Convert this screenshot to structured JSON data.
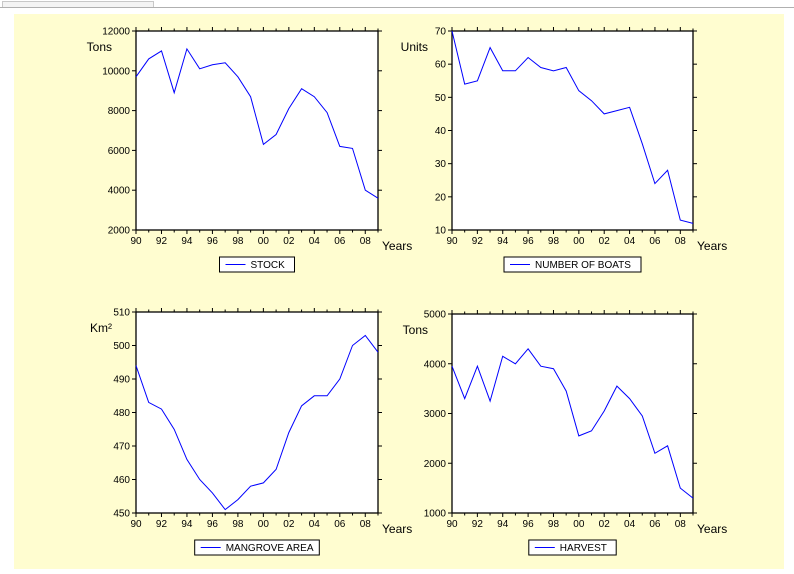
{
  "chart_data": [
    {
      "type": "line",
      "ylabel": "Tons",
      "xlabel": "Years",
      "ylim": [
        2000,
        12000
      ],
      "yticks": [
        "2000",
        "4000",
        "6000",
        "8000",
        "10000",
        "12000"
      ],
      "xticks": [
        "90",
        "92",
        "94",
        "96",
        "98",
        "00",
        "02",
        "04",
        "06",
        "08"
      ],
      "x": [
        "1990",
        "1991",
        "1992",
        "1993",
        "1994",
        "1995",
        "1996",
        "1997",
        "1998",
        "1999",
        "2000",
        "2001",
        "2002",
        "2003",
        "2004",
        "2005",
        "2006",
        "2007",
        "2008",
        "2009"
      ],
      "series": [
        {
          "name": "STOCK",
          "values": [
            9700,
            10600,
            11000,
            8900,
            11100,
            10100,
            10300,
            10400,
            9700,
            8700,
            6300,
            6800,
            8100,
            9100,
            8700,
            7900,
            6200,
            6100,
            4000,
            3600
          ]
        }
      ],
      "legend": "bottom-center",
      "line_color": "#0000ff"
    },
    {
      "type": "line",
      "ylabel": "Units",
      "xlabel": "Years",
      "ylim": [
        10,
        70
      ],
      "yticks": [
        "10",
        "20",
        "30",
        "40",
        "50",
        "60",
        "70"
      ],
      "xticks": [
        "90",
        "92",
        "94",
        "96",
        "98",
        "00",
        "02",
        "04",
        "06",
        "08"
      ],
      "x": [
        "1990",
        "1991",
        "1992",
        "1993",
        "1994",
        "1995",
        "1996",
        "1997",
        "1998",
        "1999",
        "2000",
        "2001",
        "2002",
        "2003",
        "2004",
        "2005",
        "2006",
        "2007",
        "2008",
        "2009"
      ],
      "series": [
        {
          "name": "NUMBER OF BOATS",
          "values": [
            70,
            54,
            55,
            65,
            58,
            58,
            62,
            59,
            58,
            59,
            52,
            49,
            45,
            46,
            47,
            36,
            24,
            28,
            13,
            12
          ]
        }
      ],
      "legend": "bottom-center",
      "line_color": "#0000ff"
    },
    {
      "type": "line",
      "ylabel": "Km²",
      "xlabel": "Years",
      "ylim": [
        450,
        510
      ],
      "yticks": [
        "450",
        "460",
        "470",
        "480",
        "490",
        "500",
        "510"
      ],
      "xticks": [
        "90",
        "92",
        "94",
        "96",
        "98",
        "00",
        "02",
        "04",
        "06",
        "08"
      ],
      "x": [
        "1990",
        "1991",
        "1992",
        "1993",
        "1994",
        "1995",
        "1996",
        "1997",
        "1998",
        "1999",
        "2000",
        "2001",
        "2002",
        "2003",
        "2004",
        "2005",
        "2006",
        "2007",
        "2008",
        "2009"
      ],
      "series": [
        {
          "name": "MANGROVE AREA",
          "values": [
            494,
            483,
            481,
            475,
            466,
            460,
            456,
            451,
            454,
            458,
            459,
            463,
            474,
            482,
            485,
            485,
            490,
            500,
            503,
            498
          ]
        }
      ],
      "legend": "bottom-center",
      "line_color": "#0000ff"
    },
    {
      "type": "line",
      "ylabel": "Tons",
      "xlabel": "Years",
      "ylim": [
        1000,
        5000
      ],
      "yticks": [
        "1000",
        "2000",
        "3000",
        "4000",
        "5000"
      ],
      "xticks": [
        "90",
        "92",
        "94",
        "96",
        "98",
        "00",
        "02",
        "04",
        "06",
        "08"
      ],
      "x": [
        "1990",
        "1991",
        "1992",
        "1993",
        "1994",
        "1995",
        "1996",
        "1997",
        "1998",
        "1999",
        "2000",
        "2001",
        "2002",
        "2003",
        "2004",
        "2005",
        "2006",
        "2007",
        "2008",
        "2009"
      ],
      "series": [
        {
          "name": "HARVEST",
          "values": [
            3950,
            3300,
            3950,
            3250,
            4150,
            4000,
            4300,
            3950,
            3900,
            3450,
            2550,
            2650,
            3050,
            3550,
            3300,
            2950,
            2200,
            2350,
            1500,
            1300
          ]
        }
      ],
      "legend": "bottom-center",
      "line_color": "#0000ff"
    }
  ]
}
